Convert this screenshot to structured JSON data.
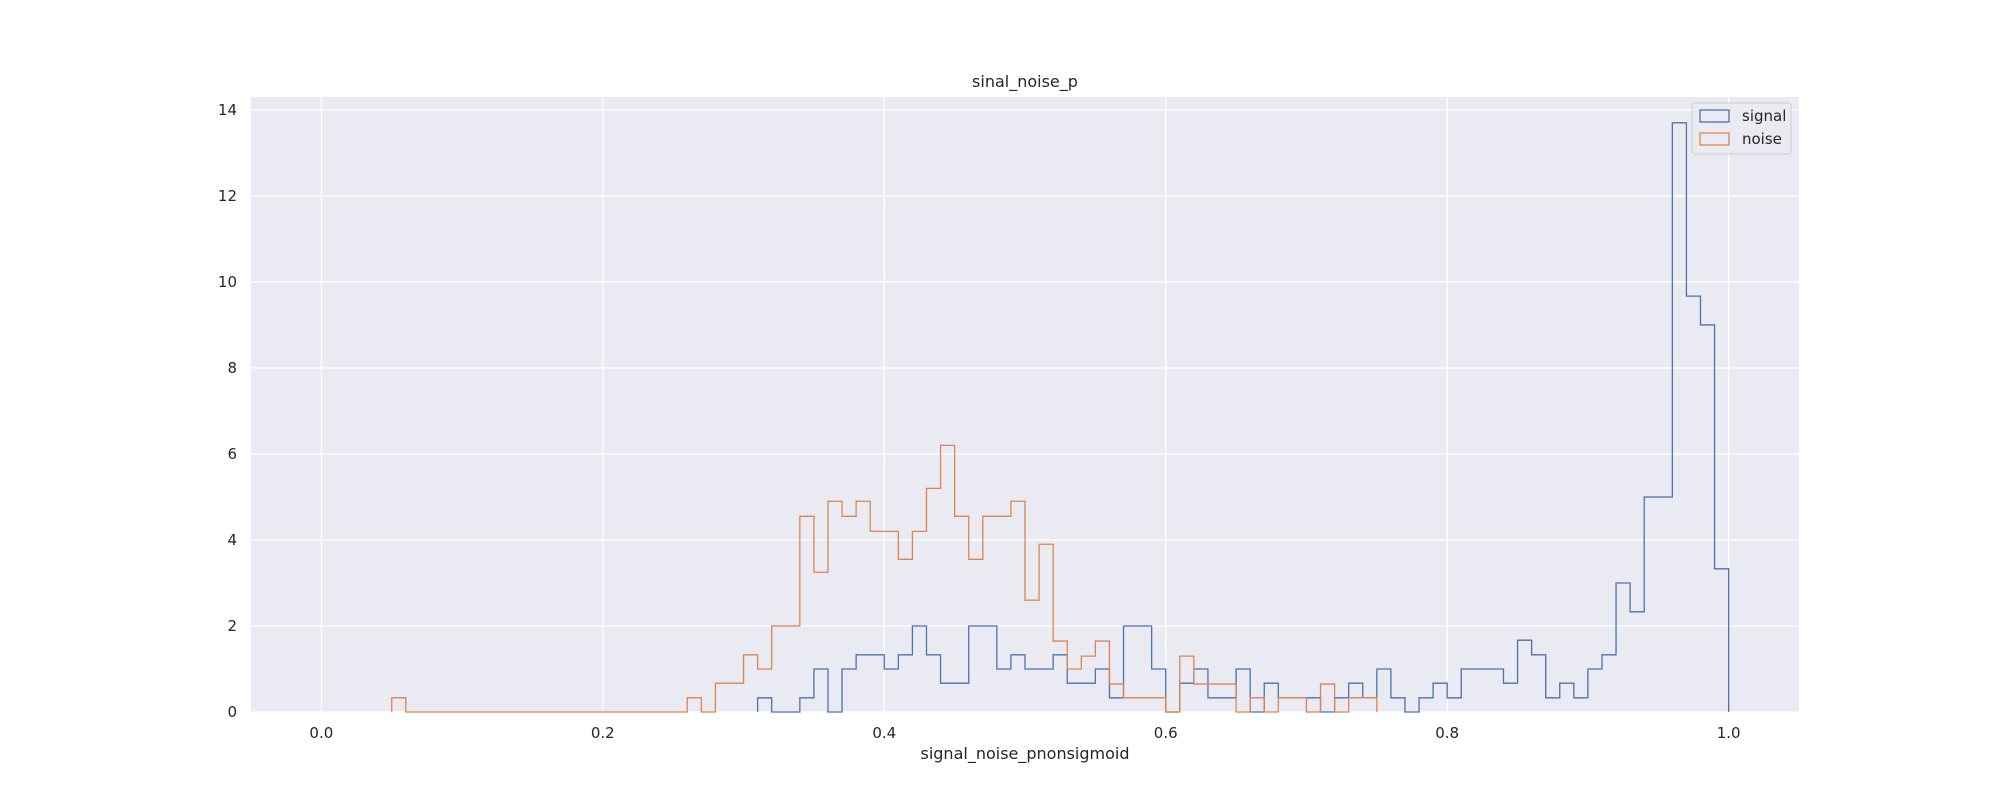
{
  "chart_data": {
    "type": "histogram-step",
    "title": "sinal_noise_p",
    "xlabel": "signal_noise_pnonsigmoid",
    "ylabel": "",
    "xlim": [
      -0.05,
      1.05
    ],
    "ylim": [
      0,
      14.3
    ],
    "xticks": [
      0.0,
      0.2,
      0.4,
      0.6,
      0.8,
      1.0
    ],
    "xtick_labels": [
      "0.0",
      "0.2",
      "0.4",
      "0.6",
      "0.8",
      "1.0"
    ],
    "yticks": [
      0,
      2,
      4,
      6,
      8,
      10,
      12,
      14
    ],
    "ytick_labels": [
      "0",
      "2",
      "4",
      "6",
      "8",
      "10",
      "12",
      "14"
    ],
    "grid": true,
    "legend_position": "top-right",
    "series": [
      {
        "name": "signal",
        "color": "#4c72b0",
        "bin_edges": [
          0.31,
          0.32,
          0.33,
          0.34,
          0.35,
          0.36,
          0.37,
          0.38,
          0.39,
          0.4,
          0.41,
          0.42,
          0.43,
          0.44,
          0.45,
          0.46,
          0.47,
          0.48,
          0.49,
          0.5,
          0.51,
          0.52,
          0.53,
          0.54,
          0.55,
          0.56,
          0.57,
          0.58,
          0.59,
          0.6,
          0.61,
          0.62,
          0.63,
          0.64,
          0.65,
          0.66,
          0.67,
          0.68,
          0.69,
          0.7,
          0.71,
          0.72,
          0.73,
          0.74,
          0.75,
          0.76,
          0.77,
          0.78,
          0.79,
          0.8,
          0.81,
          0.82,
          0.83,
          0.84,
          0.85,
          0.86,
          0.87,
          0.88,
          0.89,
          0.9,
          0.91,
          0.92,
          0.93,
          0.94,
          0.95,
          0.96,
          0.97,
          0.98,
          0.99,
          1.0
        ],
        "counts": [
          0.33,
          0,
          0,
          0.33,
          1,
          0,
          1,
          1.33,
          1.33,
          1,
          1.33,
          2,
          1.33,
          0.67,
          0.67,
          2,
          2,
          1,
          1.33,
          1,
          1,
          1.33,
          0.67,
          0.67,
          1,
          0.33,
          2,
          2,
          1,
          0,
          0.67,
          1,
          0.33,
          0.33,
          1,
          0,
          0.67,
          0.33,
          0.33,
          0.33,
          0,
          0.33,
          0.67,
          0.33,
          1,
          0.33,
          0,
          0.33,
          0.67,
          0.33,
          1,
          1,
          1,
          0.67,
          1.67,
          1.33,
          0.33,
          0.67,
          0.33,
          1,
          1.33,
          3,
          2.33,
          5,
          5,
          13.7,
          9.67,
          9,
          3.33
        ]
      },
      {
        "name": "noise",
        "color": "#dd8452",
        "bin_edges": [
          0.05,
          0.06,
          0.07,
          0.08,
          0.09,
          0.1,
          0.11,
          0.12,
          0.13,
          0.14,
          0.15,
          0.16,
          0.17,
          0.18,
          0.19,
          0.2,
          0.21,
          0.22,
          0.23,
          0.24,
          0.25,
          0.26,
          0.27,
          0.28,
          0.29,
          0.3,
          0.31,
          0.32,
          0.33,
          0.34,
          0.35,
          0.36,
          0.37,
          0.38,
          0.39,
          0.4,
          0.41,
          0.42,
          0.43,
          0.44,
          0.45,
          0.46,
          0.47,
          0.48,
          0.49,
          0.5,
          0.51,
          0.52,
          0.53,
          0.54,
          0.55,
          0.56,
          0.57,
          0.58,
          0.59,
          0.6,
          0.61,
          0.62,
          0.63,
          0.64,
          0.65,
          0.66,
          0.67,
          0.68,
          0.69,
          0.7,
          0.71,
          0.72,
          0.73,
          0.74,
          0.75
        ],
        "counts": [
          0.33,
          0,
          0,
          0,
          0,
          0,
          0,
          0,
          0,
          0,
          0,
          0,
          0,
          0,
          0,
          0,
          0,
          0,
          0,
          0,
          0,
          0.33,
          0,
          0.67,
          0.67,
          1.33,
          1,
          2,
          2,
          4.55,
          3.25,
          4.9,
          4.55,
          4.9,
          4.2,
          4.2,
          3.55,
          4.2,
          5.2,
          6.2,
          4.55,
          3.55,
          4.55,
          4.55,
          4.9,
          2.6,
          3.9,
          1.65,
          1,
          1.3,
          1.65,
          0.65,
          0.33,
          0.33,
          0.33,
          0,
          1.3,
          0.65,
          0.65,
          0.65,
          0,
          0.33,
          0,
          0.33,
          0.33,
          0,
          0.65,
          0,
          0.33,
          0.33
        ]
      }
    ]
  }
}
